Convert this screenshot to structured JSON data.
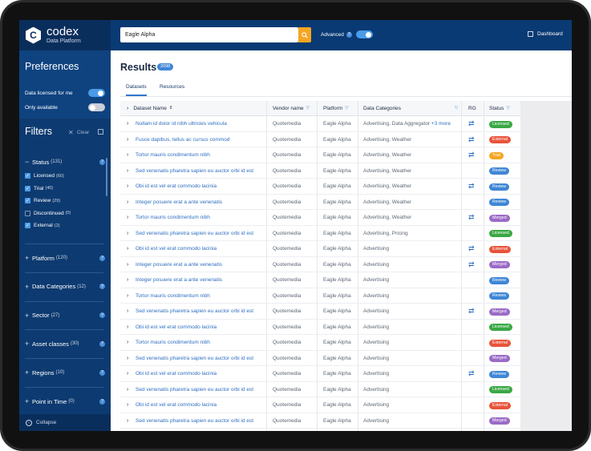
{
  "app": {
    "brand": "codex",
    "subtitle": "Data Platform",
    "logo_letter": "C"
  },
  "header": {
    "search_value": "Eagle Alpha",
    "search_icon": "search-icon",
    "advanced_label": "Advanced",
    "advanced_on": true,
    "dashboard_label": "Dashboard"
  },
  "preferences": {
    "title": "Preferences",
    "items": [
      {
        "label": "Data licensed for me",
        "on": true
      },
      {
        "label": "Only available",
        "on": false
      }
    ]
  },
  "filters": {
    "title": "Filters",
    "clear_label": "Clear",
    "status": {
      "label": "Status",
      "count": "(131)",
      "options": [
        {
          "label": "Licensed",
          "count": "(60)",
          "checked": true
        },
        {
          "label": "Trial",
          "count": "(40)",
          "checked": true
        },
        {
          "label": "Review",
          "count": "(29)",
          "checked": true
        },
        {
          "label": "Discontinued",
          "count": "(0)",
          "checked": false
        },
        {
          "label": "External",
          "count": "(2)",
          "checked": true
        }
      ]
    },
    "sections": [
      {
        "label": "Platform",
        "count": "(120)"
      },
      {
        "label": "Data Categories",
        "count": "(12)"
      },
      {
        "label": "Sector",
        "count": "(27)"
      },
      {
        "label": "Asset classes",
        "count": "(30)"
      },
      {
        "label": "Regions",
        "count": "(10)"
      },
      {
        "label": "Point in Time",
        "count": "(0)"
      }
    ],
    "collapse_label": "Collapse"
  },
  "results": {
    "title": "Results",
    "count": "2098",
    "tabs": [
      "Datasets",
      "Resources"
    ],
    "columns": [
      "Dataset Name",
      "Vendor name",
      "Platform",
      "Data Categories",
      "RG",
      "Status"
    ],
    "status_colors": {
      "Licensed": "#3aa845",
      "External": "#e8543b",
      "Trial": "#f5a623",
      "Review": "#3f86d6",
      "Merged": "#9b6bc7"
    },
    "rows": [
      {
        "name": "Nullam id dolor id nibh ultricies vehicula",
        "vendor": "Quotemedia",
        "platform": "Eagle Alpha",
        "categories": "Advertising, Data Aggregator",
        "more": "+3 more",
        "rg": true,
        "status": "Licensed"
      },
      {
        "name": "Fusce dapibus, tellus ac cursus commod",
        "vendor": "Quotemedia",
        "platform": "Eagle Alpha",
        "categories": "Advertising, Weather",
        "more": "",
        "rg": true,
        "status": "External"
      },
      {
        "name": "Tortor mauris condimentum nibh",
        "vendor": "Quotemedia",
        "platform": "Eagle Alpha",
        "categories": "Advertising, Weather",
        "more": "",
        "rg": true,
        "status": "Trial"
      },
      {
        "name": "Sed venenatis pharetra sapien eu auctor orbi id est",
        "vendor": "Quotemedia",
        "platform": "Eagle Alpha",
        "categories": "Advertising, Weather",
        "more": "",
        "rg": false,
        "status": "Review"
      },
      {
        "name": "Obi id est vel erat commodo lacinia",
        "vendor": "Quotemedia",
        "platform": "Eagle Alpha",
        "categories": "Advertising, Weather",
        "more": "",
        "rg": true,
        "status": "Review"
      },
      {
        "name": "Integer posuere erat a ante venenatis",
        "vendor": "Quotemedia",
        "platform": "Eagle Alpha",
        "categories": "Advertising, Weather",
        "more": "",
        "rg": false,
        "status": "Review"
      },
      {
        "name": "Tortor mauris condimentum nibh",
        "vendor": "Quotemedia",
        "platform": "Eagle Alpha",
        "categories": "Advertising, Weather",
        "more": "",
        "rg": true,
        "status": "Merged"
      },
      {
        "name": "Sed venenatis pharetra sapien eu auctor orbi id est",
        "vendor": "Quotemedia",
        "platform": "Eagle Alpha",
        "categories": "Advertising, Pricing",
        "more": "",
        "rg": false,
        "status": "Licensed"
      },
      {
        "name": "Obi id est vel erat commodo lacinia",
        "vendor": "Quotemedia",
        "platform": "Eagle Alpha",
        "categories": "Advertising",
        "more": "",
        "rg": true,
        "status": "External"
      },
      {
        "name": "Integer posuere erat a ante venenatis",
        "vendor": "Quotemedia",
        "platform": "Eagle Alpha",
        "categories": "Advertising",
        "more": "",
        "rg": true,
        "status": "Merged"
      },
      {
        "name": "Integer posuere erat a ante venenatis",
        "vendor": "Quotemedia",
        "platform": "Eagle Alpha",
        "categories": "Advertising",
        "more": "",
        "rg": false,
        "status": "Review"
      },
      {
        "name": "Tortor mauris condimentum nibh",
        "vendor": "Quotemedia",
        "platform": "Eagle Alpha",
        "categories": "Advertising",
        "more": "",
        "rg": false,
        "status": "Review"
      },
      {
        "name": "Sed venenatis pharetra sapien eu auctor orbi id est",
        "vendor": "Quotemedia",
        "platform": "Eagle Alpha",
        "categories": "Advertising",
        "more": "",
        "rg": true,
        "status": "Merged"
      },
      {
        "name": "Obi id est vel erat commodo lacinia",
        "vendor": "Quotemedia",
        "platform": "Eagle Alpha",
        "categories": "Advertising",
        "more": "",
        "rg": false,
        "status": "Licensed"
      },
      {
        "name": "Tortor mauris condimentum nibh",
        "vendor": "Quotemedia",
        "platform": "Eagle Alpha",
        "categories": "Advertising",
        "more": "",
        "rg": false,
        "status": "External"
      },
      {
        "name": "Sed venenatis pharetra sapien eu auctor orbi id est",
        "vendor": "Quotemedia",
        "platform": "Eagle Alpha",
        "categories": "Advertising",
        "more": "",
        "rg": false,
        "status": "Merged"
      },
      {
        "name": "Obi id est vel erat commodo lacinia",
        "vendor": "Quotemedia",
        "platform": "Eagle Alpha",
        "categories": "Advertising",
        "more": "",
        "rg": true,
        "status": "Review"
      },
      {
        "name": "Sed venenatis pharetra sapien eu auctor orbi id est",
        "vendor": "Quotemedia",
        "platform": "Eagle Alpha",
        "categories": "Advertising",
        "more": "",
        "rg": false,
        "status": "Licensed"
      },
      {
        "name": "Obi id est vel erat commodo lacinia",
        "vendor": "Quotemedia",
        "platform": "Eagle Alpha",
        "categories": "Advertising",
        "more": "",
        "rg": false,
        "status": "External"
      },
      {
        "name": "Sed venenatis pharetra sapien eu auctor orbi id est",
        "vendor": "Quotemedia",
        "platform": "Eagle Alpha",
        "categories": "Advertising",
        "more": "",
        "rg": false,
        "status": "Merged"
      }
    ]
  }
}
